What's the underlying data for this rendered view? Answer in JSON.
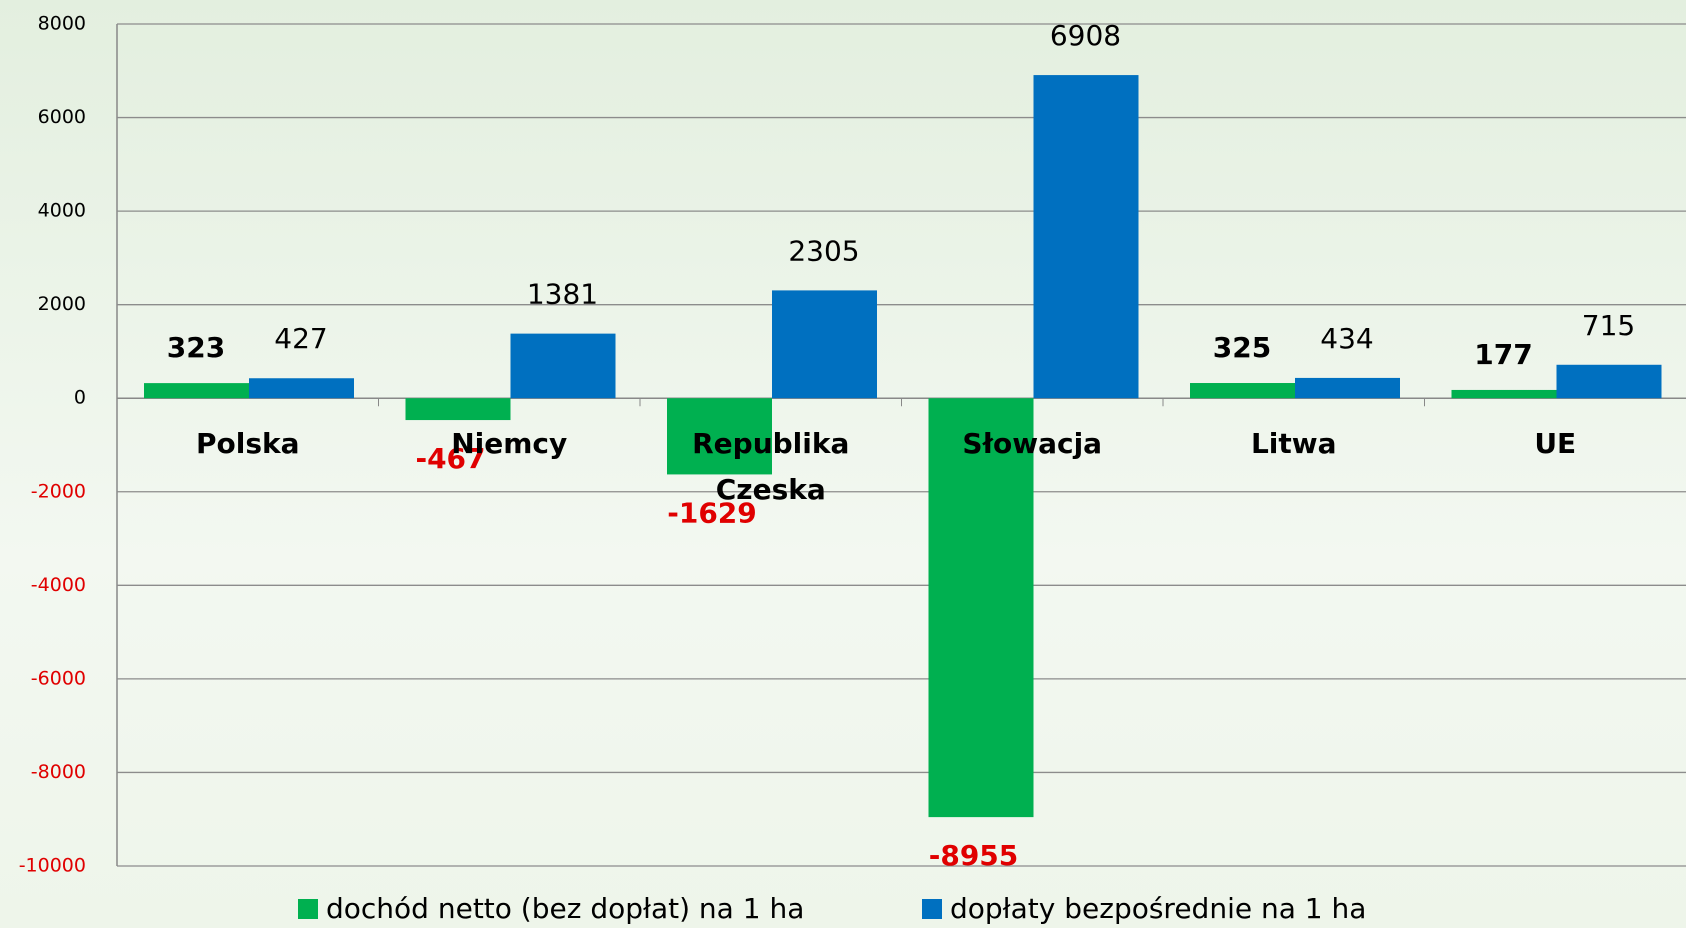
{
  "chart_data": {
    "type": "bar",
    "categories": [
      "Polska",
      "Niemcy",
      "Republika Czeska",
      "Słowacja",
      "Litwa",
      "UE"
    ],
    "series": [
      {
        "name": "dochód netto (bez dopłat) na 1 ha",
        "color": "#00b050",
        "values": [
          323,
          -467,
          -1629,
          -8955,
          325,
          177
        ]
      },
      {
        "name": "dopłaty bezpośrednie na 1 ha",
        "color": "#0070c0",
        "values": [
          427,
          1381,
          2305,
          6908,
          434,
          715
        ]
      }
    ],
    "ylim": [
      -10000,
      8000
    ],
    "yticks": [
      -10000,
      -8000,
      -6000,
      -4000,
      -2000,
      0,
      2000,
      4000,
      6000,
      8000
    ],
    "grid": true,
    "legend": "bottom"
  }
}
